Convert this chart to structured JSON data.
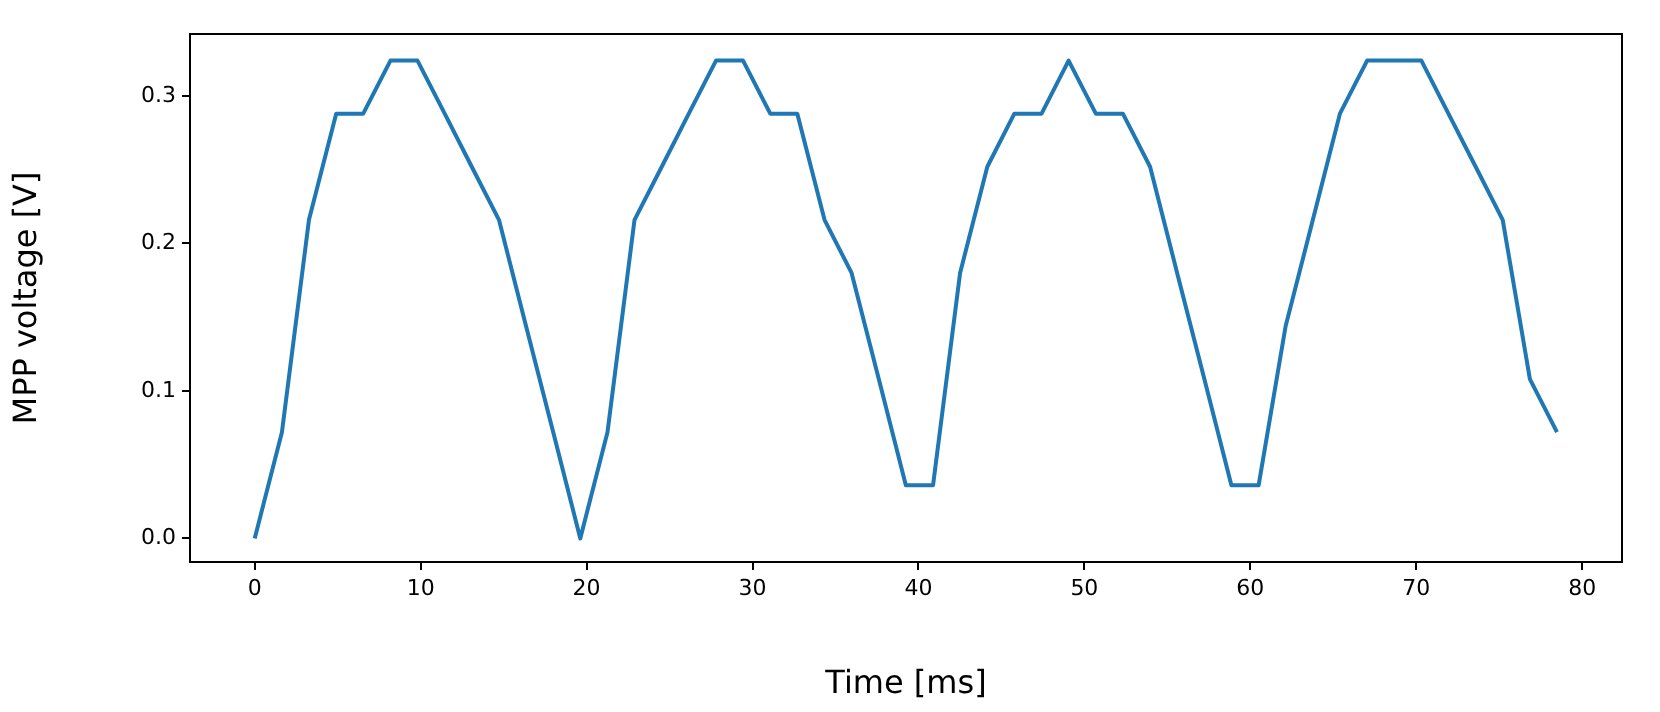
{
  "chart_data": {
    "type": "line",
    "xlabel": "Time [ms]",
    "ylabel": "MPP voltage [V]",
    "x": [
      0,
      1.64,
      3.27,
      4.91,
      6.54,
      8.18,
      9.81,
      11.45,
      13.08,
      14.72,
      16.35,
      17.99,
      19.62,
      21.26,
      22.89,
      24.53,
      26.16,
      27.8,
      29.43,
      31.07,
      32.7,
      34.34,
      35.97,
      37.61,
      39.24,
      40.88,
      42.51,
      44.15,
      45.78,
      47.42,
      49.05,
      50.69,
      52.32,
      53.96,
      55.59,
      57.23,
      58.86,
      60.5,
      62.13,
      63.77,
      65.4,
      67.04,
      68.67,
      70.31,
      71.94,
      73.58,
      75.21,
      76.85,
      78.48
    ],
    "series": [
      {
        "color": "#1f77b4",
        "values": [
          0,
          0.072,
          0.216,
          0.288,
          0.288,
          0.324,
          0.324,
          0.288,
          0.252,
          0.216,
          0.144,
          0.072,
          0,
          0.072,
          0.216,
          0.252,
          0.288,
          0.324,
          0.324,
          0.288,
          0.288,
          0.216,
          0.18,
          0.108,
          0.036,
          0.036,
          0.18,
          0.252,
          0.288,
          0.288,
          0.324,
          0.288,
          0.288,
          0.252,
          0.18,
          0.108,
          0.036,
          0.036,
          0.144,
          0.216,
          0.288,
          0.324,
          0.324,
          0.324,
          0.288,
          0.252,
          0.216,
          0.108,
          0.072
        ]
      }
    ],
    "xlim": [
      -3.9,
      82.4
    ],
    "xticks": [
      0,
      10,
      20,
      30,
      40,
      50,
      60,
      70,
      80
    ],
    "ylim": [
      -0.016,
      0.342
    ],
    "yticks": [
      {
        "value": 0,
        "label": "0.0"
      },
      {
        "value": 0.1,
        "label": "0.1"
      },
      {
        "value": 0.2,
        "label": "0.2"
      },
      {
        "value": 0.3,
        "label": "0.3"
      }
    ],
    "grid": false,
    "legend": false,
    "marker": "none",
    "line_style": "solid"
  }
}
